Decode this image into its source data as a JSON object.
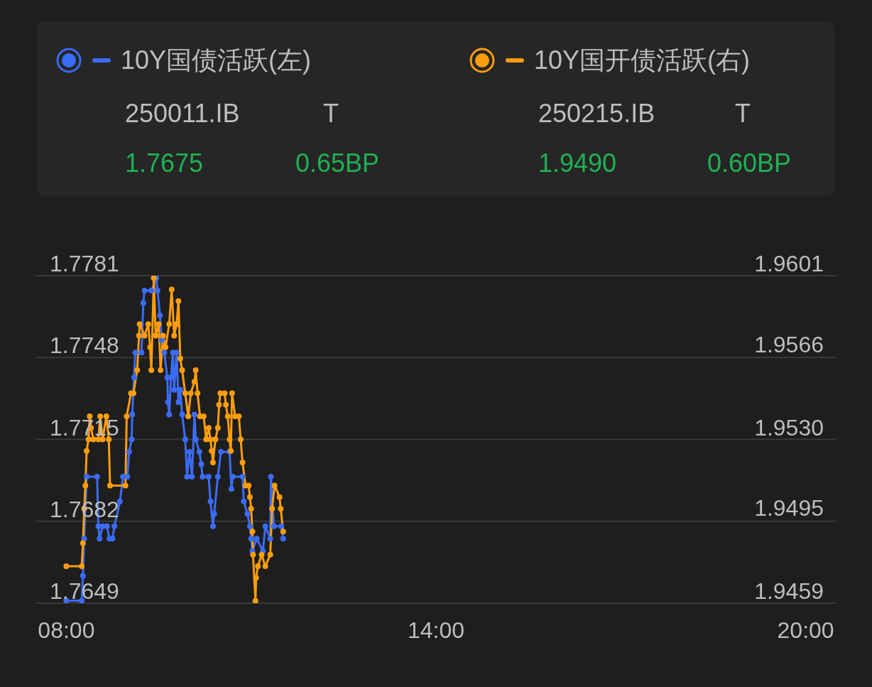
{
  "chart_data": {
    "type": "line",
    "series": [
      {
        "name": "10Y国债活跃(左)",
        "color": "#3b6cf6",
        "axis": "y",
        "x": [
          8.0,
          8.25,
          8.27,
          8.29,
          8.33,
          8.5,
          8.52,
          8.54,
          8.59,
          8.66,
          8.7,
          8.75,
          8.78,
          8.87,
          8.92,
          8.99,
          9.02,
          9.06,
          9.07,
          9.1,
          9.12,
          9.22,
          9.25,
          9.27,
          9.38,
          9.46,
          9.48,
          9.52,
          9.55,
          9.59,
          9.64,
          9.65,
          9.67,
          9.7,
          9.73,
          9.75,
          9.79,
          9.82,
          9.85,
          9.88,
          9.93,
          9.96,
          10.0,
          10.04,
          10.08,
          10.1,
          10.16,
          10.19,
          10.21,
          10.31,
          10.34,
          10.38,
          10.4,
          10.46,
          10.51,
          10.65,
          10.68,
          10.7,
          10.86,
          10.88,
          10.94,
          10.98,
          11.0,
          11.02,
          11.09,
          11.19,
          11.23,
          11.31,
          11.32,
          11.37,
          11.49,
          11.52
        ],
        "values": [
          1.765,
          1.765,
          1.766,
          1.7675,
          1.77,
          1.77,
          1.768,
          1.7675,
          1.768,
          1.768,
          1.7675,
          1.7675,
          1.768,
          1.769,
          1.77,
          1.77,
          1.771,
          1.7715,
          1.7725,
          1.774,
          1.775,
          1.775,
          1.777,
          1.7775,
          1.7775,
          1.778,
          1.7775,
          1.7765,
          1.7755,
          1.775,
          1.774,
          1.773,
          1.7725,
          1.774,
          1.775,
          1.7735,
          1.775,
          1.773,
          1.7735,
          1.7725,
          1.7715,
          1.77,
          1.771,
          1.77,
          1.7725,
          1.7715,
          1.771,
          1.7705,
          1.77,
          1.77,
          1.769,
          1.768,
          1.7685,
          1.77,
          1.771,
          1.771,
          1.7695,
          1.77,
          1.77,
          1.769,
          1.7685,
          1.768,
          1.7675,
          1.767,
          1.7675,
          1.767,
          1.768,
          1.7675,
          1.77,
          1.768,
          1.768,
          1.7675
        ]
      },
      {
        "name": "10Y国开债活跃(右)",
        "color": "#fb9d0e",
        "axis": "y2",
        "x": [
          8.0,
          8.25,
          8.27,
          8.29,
          8.31,
          8.33,
          8.36,
          8.38,
          8.4,
          8.44,
          8.52,
          8.55,
          8.59,
          8.65,
          8.69,
          8.71,
          8.96,
          8.98,
          9.05,
          9.09,
          9.15,
          9.18,
          9.19,
          9.27,
          9.33,
          9.36,
          9.38,
          9.42,
          9.45,
          9.5,
          9.53,
          9.57,
          9.61,
          9.67,
          9.71,
          9.75,
          9.79,
          9.82,
          9.85,
          9.88,
          9.93,
          9.98,
          10.02,
          10.08,
          10.1,
          10.13,
          10.17,
          10.23,
          10.27,
          10.31,
          10.34,
          10.36,
          10.38,
          10.42,
          10.46,
          10.48,
          10.5,
          10.57,
          10.59,
          10.62,
          10.65,
          10.67,
          10.69,
          10.74,
          10.8,
          10.83,
          10.86,
          10.91,
          10.96,
          10.98,
          11.0,
          11.02,
          11.03,
          11.07,
          11.08,
          11.11,
          11.17,
          11.23,
          11.31,
          11.34,
          11.38,
          11.46,
          11.48,
          11.52
        ],
        "values": [
          1.9475,
          1.9475,
          1.9485,
          1.95,
          1.951,
          1.9525,
          1.953,
          1.954,
          1.9535,
          1.953,
          1.953,
          1.954,
          1.953,
          1.954,
          1.953,
          1.951,
          1.951,
          1.954,
          1.955,
          1.955,
          1.956,
          1.9575,
          1.958,
          1.9575,
          1.958,
          1.957,
          1.956,
          1.96,
          1.9575,
          1.958,
          1.956,
          1.9575,
          1.957,
          1.958,
          1.9595,
          1.9575,
          1.958,
          1.959,
          1.9565,
          1.956,
          1.955,
          1.954,
          1.955,
          1.9555,
          1.956,
          1.955,
          1.954,
          1.954,
          1.953,
          1.9535,
          1.953,
          1.9525,
          1.952,
          1.953,
          1.9535,
          1.9545,
          1.955,
          1.955,
          1.9545,
          1.954,
          1.953,
          1.9525,
          1.955,
          1.954,
          1.954,
          1.953,
          1.952,
          1.951,
          1.951,
          1.9505,
          1.95,
          1.949,
          1.948,
          1.946,
          1.947,
          1.9475,
          1.948,
          1.9475,
          1.948,
          1.95,
          1.951,
          1.9505,
          1.95,
          1.949
        ]
      }
    ],
    "xlim": [
      7.5,
      20.5
    ],
    "xticks": [
      {
        "value": 8,
        "label": "08:00"
      },
      {
        "value": 14,
        "label": "14:00"
      },
      {
        "value": 20,
        "label": "20:00"
      }
    ],
    "ylim": [
      1.7649,
      1.7781
    ],
    "yticks": [
      1.7649,
      1.7682,
      1.7715,
      1.7748,
      1.7781
    ],
    "y2lim": [
      1.9459,
      1.9601
    ],
    "y2ticks": [
      1.9459,
      1.9495,
      {
        "value": 1.953,
        "label": "1.9530"
      },
      1.9566,
      1.9601
    ],
    "annotations": [
      "250011.IB",
      "T",
      "1.7675",
      "0.65BP",
      "250215.IB",
      "T",
      "1.9490",
      "0.60BP"
    ],
    "grid": "y",
    "legend": "top",
    "marker": "circle",
    "line_style": "solid"
  }
}
